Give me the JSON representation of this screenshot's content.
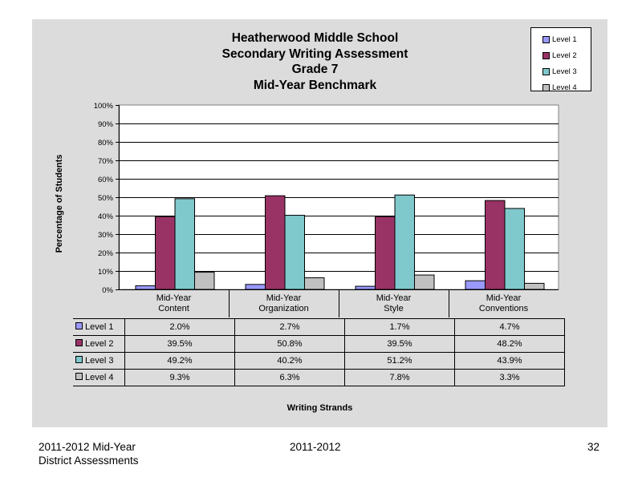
{
  "chart_data": {
    "type": "bar",
    "title_lines": [
      "Heatherwood Middle School",
      "Secondary Writing Assessment",
      "Grade 7",
      "Mid-Year Benchmark"
    ],
    "xlabel": "Writing Strands",
    "ylabel": "Percentage of Students",
    "ylim": [
      0,
      100
    ],
    "yticks": [
      "0%",
      "10%",
      "20%",
      "30%",
      "40%",
      "50%",
      "60%",
      "70%",
      "80%",
      "90%",
      "100%"
    ],
    "categories": [
      [
        "Mid-Year",
        "Content"
      ],
      [
        "Mid-Year",
        "Organization"
      ],
      [
        "Mid-Year",
        "Style"
      ],
      [
        "Mid-Year",
        "Conventions"
      ]
    ],
    "series": [
      {
        "name": "Level 1",
        "color": "#9999ff",
        "values": [
          2.0,
          2.7,
          1.7,
          4.7
        ],
        "labels": [
          "2.0%",
          "2.7%",
          "1.7%",
          "4.7%"
        ]
      },
      {
        "name": "Level 2",
        "color": "#993366",
        "values": [
          39.5,
          50.8,
          39.5,
          48.2
        ],
        "labels": [
          "39.5%",
          "50.8%",
          "39.5%",
          "48.2%"
        ]
      },
      {
        "name": "Level 3",
        "color": "#7fc8cc",
        "values": [
          49.2,
          40.2,
          51.2,
          43.9
        ],
        "labels": [
          "49.2%",
          "40.2%",
          "51.2%",
          "43.9%"
        ]
      },
      {
        "name": "Level 4",
        "color": "#c0c0c0",
        "values": [
          9.3,
          6.3,
          7.8,
          3.3
        ],
        "labels": [
          "9.3%",
          "6.3%",
          "7.8%",
          "3.3%"
        ]
      }
    ],
    "grid": true,
    "legend_position": "top-right",
    "data_table": true
  },
  "footer": {
    "left_line1": "2011-2012  Mid-Year",
    "left_line2": "District Assessments",
    "center": "2011-2012",
    "page_number": "32"
  }
}
